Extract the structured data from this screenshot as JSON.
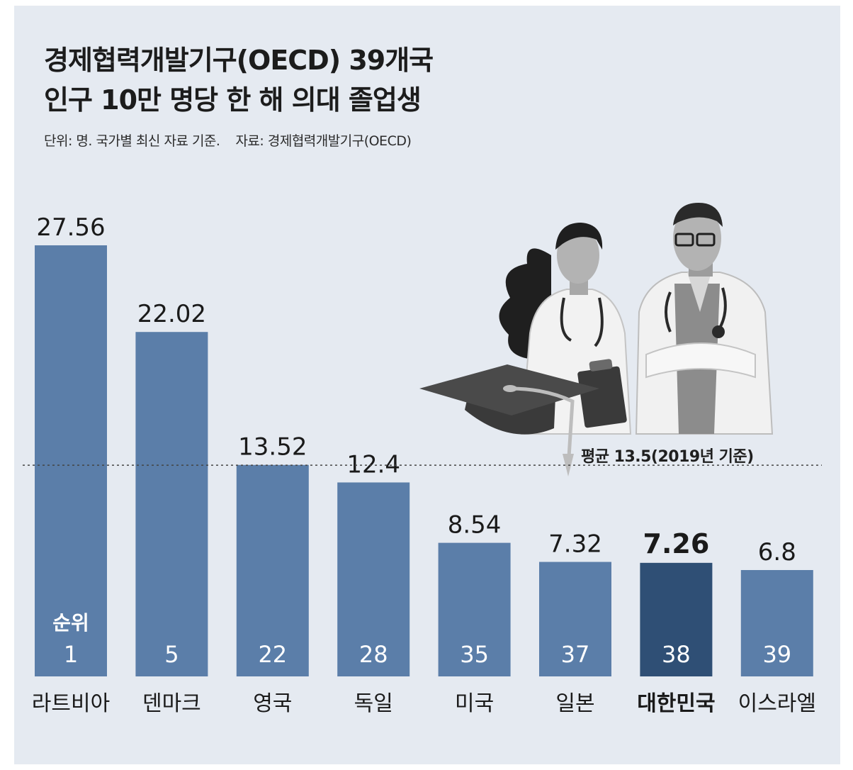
{
  "title_line1": "경제협력개발기구(OECD) 39개국",
  "title_line2": "인구 10만 명당 한 해 의대 졸업생",
  "unit_note": "단위: 명. 국가별 최신 자료 기준.",
  "source_note": "자료: 경제협력개발기구(OECD)",
  "colors": {
    "bar": "#5b7ea9",
    "highlight_bar": "#2f4f75",
    "background": "#e5eaf1",
    "rank_text": "#ffffff"
  },
  "chart_data": {
    "type": "bar",
    "categories": [
      "라트비아",
      "덴마크",
      "영국",
      "독일",
      "미국",
      "일본",
      "대한민국",
      "이스라엘"
    ],
    "values": [
      27.56,
      22.02,
      13.52,
      12.4,
      8.54,
      7.32,
      7.26,
      6.8
    ],
    "value_labels": [
      "27.56",
      "22.02",
      "13.52",
      "12.4",
      "8.54",
      "7.32",
      "7.26",
      "6.8"
    ],
    "ranks": [
      "1",
      "5",
      "22",
      "28",
      "35",
      "37",
      "38",
      "39"
    ],
    "rank_caption": "순위",
    "highlight": "대한민국",
    "average": 13.5,
    "average_label": "평균 13.5(2019년 기준)",
    "ylim": [
      0,
      27.56
    ],
    "grid": false,
    "legend": "none"
  },
  "illustration": {
    "icon": "doctors-graduation-cap-illustration"
  }
}
